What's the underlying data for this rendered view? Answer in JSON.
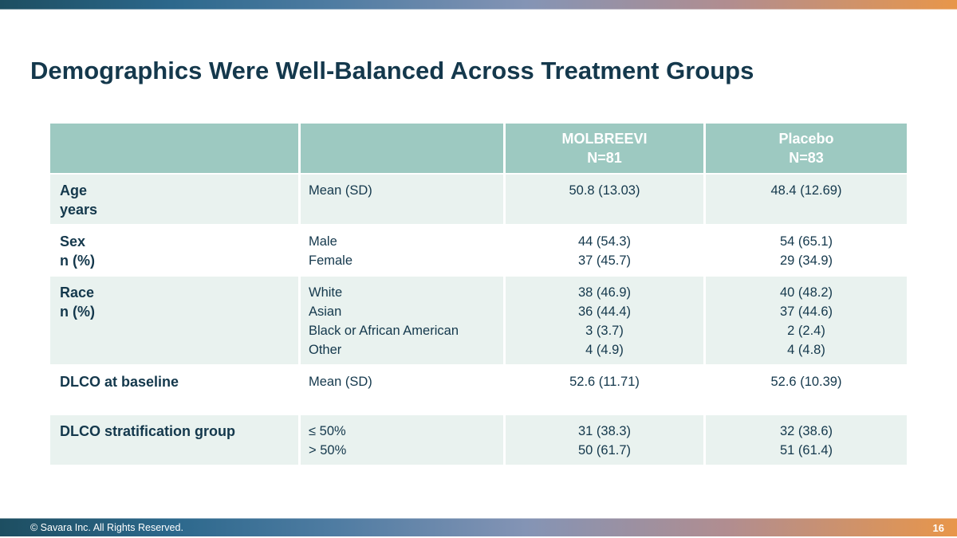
{
  "slide_title": "Demographics Were Well-Balanced Across Treatment Groups",
  "table": {
    "header": {
      "col1": "",
      "col2": "",
      "molbreevi_name": "MOLBREEVI",
      "molbreevi_n": "N=81",
      "placebo_name": "Placebo",
      "placebo_n": "N=83"
    },
    "rows": [
      {
        "label_lines": [
          "Age",
          "years"
        ],
        "categories": [
          "Mean (SD)"
        ],
        "molbreevi": [
          "50.8 (13.03)"
        ],
        "placebo": [
          "48.4 (12.69)"
        ]
      },
      {
        "label_lines": [
          "Sex",
          "n (%)"
        ],
        "categories": [
          "Male",
          "Female"
        ],
        "molbreevi": [
          "44 (54.3)",
          "37 (45.7)"
        ],
        "placebo": [
          "54 (65.1)",
          "29 (34.9)"
        ]
      },
      {
        "label_lines": [
          "Race",
          "n (%)"
        ],
        "categories": [
          "White",
          "Asian",
          "Black or African American",
          "Other"
        ],
        "molbreevi": [
          "38 (46.9)",
          "36 (44.4)",
          "3 (3.7)",
          "4 (4.9)"
        ],
        "placebo": [
          "40 (48.2)",
          "37 (44.6)",
          "2 (2.4)",
          "4 (4.8)"
        ]
      },
      {
        "label_lines": [
          "DLCO at baseline"
        ],
        "categories": [
          "Mean (SD)"
        ],
        "molbreevi": [
          "52.6 (11.71)"
        ],
        "placebo": [
          "52.6 (10.39)"
        ]
      },
      {
        "label_lines": [
          "DLCO stratification group"
        ],
        "categories": [
          "≤ 50%",
          "> 50%"
        ],
        "molbreevi": [
          "31 (38.3)",
          "50 (61.7)"
        ],
        "placebo": [
          "32 (38.6)",
          "51 (61.4)"
        ]
      }
    ]
  },
  "footer": {
    "copyright": "© Savara Inc. All Rights Reserved.",
    "page_number": "16"
  },
  "colors": {
    "header_fill": "#9dc9c1",
    "row_alt_fill": "#e9f2ef",
    "text_dark": "#14384c",
    "gradient_start": "#1d4e61",
    "gradient_blue": "#4f7ca2",
    "gradient_slate": "#8494b5",
    "gradient_end": "#e8964a"
  }
}
